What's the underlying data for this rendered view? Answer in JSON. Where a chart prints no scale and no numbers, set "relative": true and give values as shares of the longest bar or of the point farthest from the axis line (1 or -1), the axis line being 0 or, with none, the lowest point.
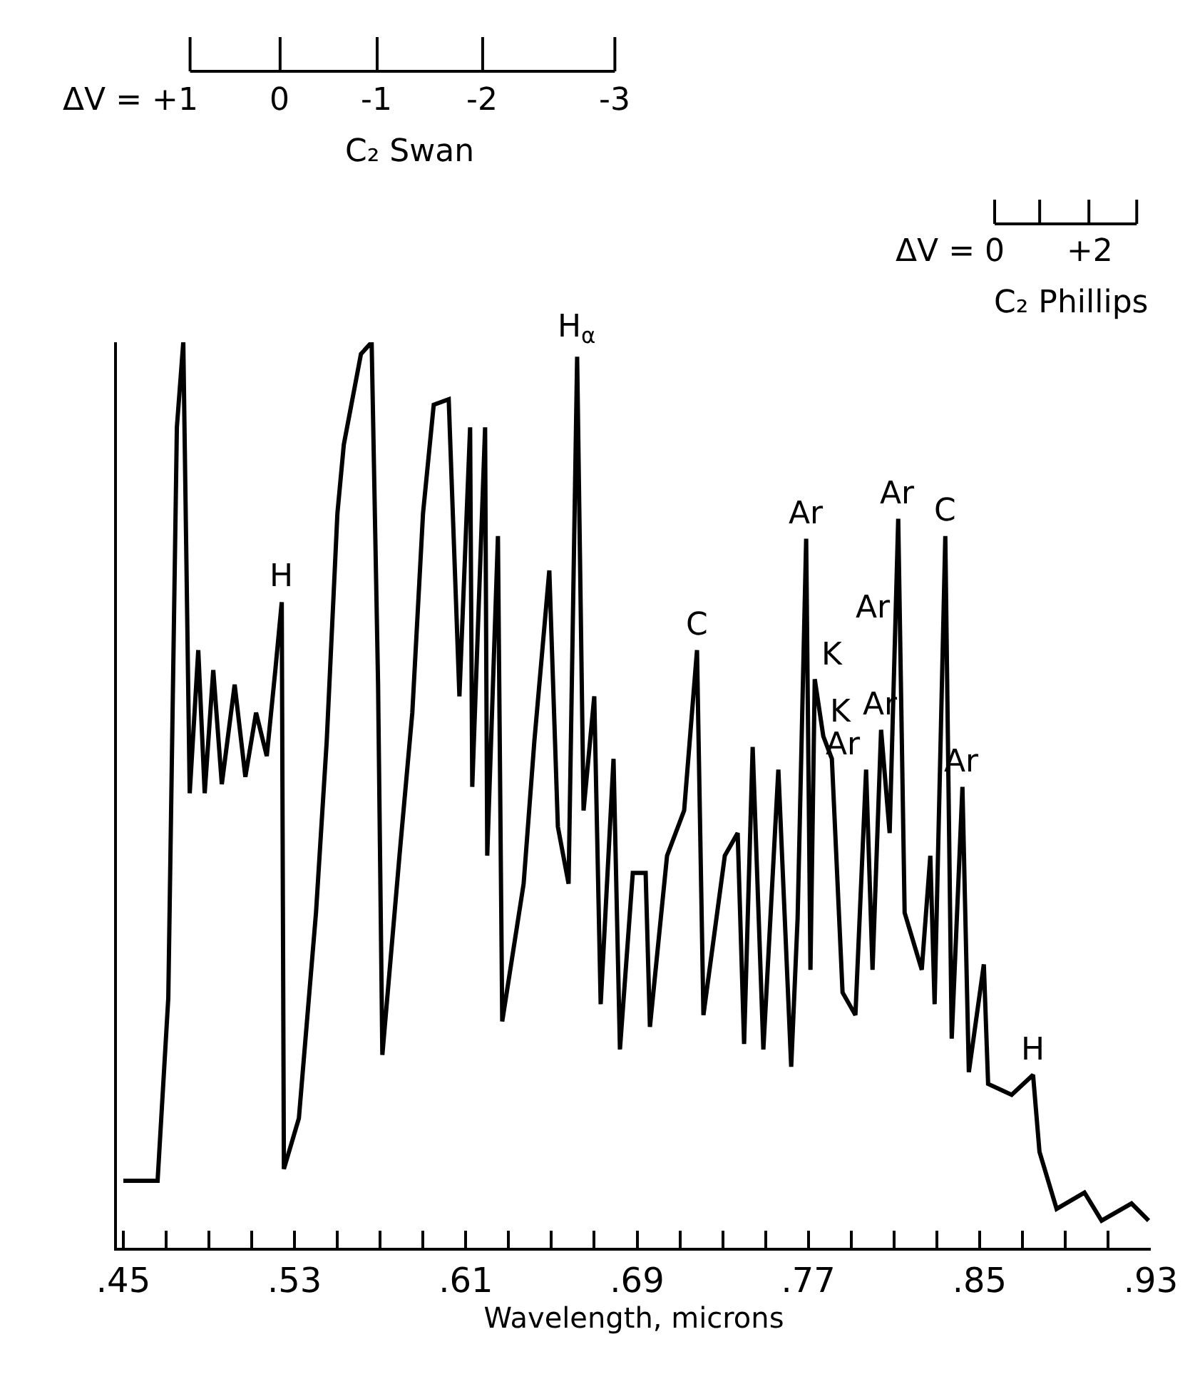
{
  "chart_data": {
    "type": "line",
    "relative": true,
    "xlabel": "Wavelength, microns",
    "xlim": [
      0.447,
      0.93
    ],
    "xticks": [
      {
        "value": 0.45,
        "label": ".45"
      },
      {
        "value": 0.47,
        "label": null
      },
      {
        "value": 0.49,
        "label": null
      },
      {
        "value": 0.51,
        "label": null
      },
      {
        "value": 0.53,
        "label": ".53"
      },
      {
        "value": 0.55,
        "label": null
      },
      {
        "value": 0.57,
        "label": null
      },
      {
        "value": 0.59,
        "label": null
      },
      {
        "value": 0.61,
        "label": ".61"
      },
      {
        "value": 0.63,
        "label": null
      },
      {
        "value": 0.65,
        "label": null
      },
      {
        "value": 0.67,
        "label": null
      },
      {
        "value": 0.69,
        "label": ".69"
      },
      {
        "value": 0.71,
        "label": null
      },
      {
        "value": 0.73,
        "label": null
      },
      {
        "value": 0.75,
        "label": null
      },
      {
        "value": 0.77,
        "label": ".77"
      },
      {
        "value": 0.79,
        "label": null
      },
      {
        "value": 0.81,
        "label": null
      },
      {
        "value": 0.83,
        "label": null
      },
      {
        "value": 0.85,
        "label": ".85"
      },
      {
        "value": 0.87,
        "label": null
      },
      {
        "value": 0.89,
        "label": null
      },
      {
        "value": 0.91,
        "label": null
      },
      {
        "value": 0.93,
        "label": ".93"
      }
    ],
    "tick_labels": "x",
    "marker": "none",
    "line_style": "solid",
    "series": [
      {
        "color": "#000000",
        "x": [
          0.45,
          0.466,
          0.471,
          0.475,
          0.478,
          0.481,
          0.485,
          0.488,
          0.492,
          0.496,
          0.502,
          0.507,
          0.512,
          0.517,
          0.521,
          0.524,
          0.525,
          0.532,
          0.54,
          0.545,
          0.55,
          0.553,
          0.561,
          0.566,
          0.569,
          0.571,
          0.579,
          0.585,
          0.59,
          0.595,
          0.602,
          0.607,
          0.612,
          0.613,
          0.619,
          0.62,
          0.625,
          0.627,
          0.637,
          0.642,
          0.649,
          0.653,
          0.658,
          0.662,
          0.665,
          0.67,
          0.673,
          0.679,
          0.682,
          0.688,
          0.694,
          0.696,
          0.704,
          0.712,
          0.718,
          0.721,
          0.731,
          0.737,
          0.74,
          0.744,
          0.749,
          0.756,
          0.762,
          0.765,
          0.769,
          0.771,
          0.773,
          0.777,
          0.781,
          0.786,
          0.792,
          0.797,
          0.8,
          0.804,
          0.808,
          0.812,
          0.815,
          0.823,
          0.827,
          0.829,
          0.834,
          0.837,
          0.842,
          0.845,
          0.852,
          0.854,
          0.865,
          0.875,
          0.878,
          0.886,
          0.899,
          0.907,
          0.921,
          0.929
        ],
        "values": [
          0.074,
          0.074,
          0.276,
          0.906,
          1.0,
          0.502,
          0.66,
          0.502,
          0.638,
          0.512,
          0.622,
          0.52,
          0.591,
          0.543,
          0.638,
          0.713,
          0.087,
          0.143,
          0.37,
          0.559,
          0.811,
          0.887,
          0.987,
          1.0,
          0.622,
          0.213,
          0.433,
          0.591,
          0.811,
          0.931,
          0.937,
          0.609,
          0.906,
          0.509,
          0.906,
          0.433,
          0.786,
          0.25,
          0.402,
          0.559,
          0.748,
          0.465,
          0.402,
          0.984,
          0.483,
          0.609,
          0.269,
          0.54,
          0.219,
          0.414,
          0.414,
          0.244,
          0.433,
          0.483,
          0.66,
          0.257,
          0.433,
          0.458,
          0.225,
          0.553,
          0.219,
          0.528,
          0.2,
          0.364,
          0.783,
          0.307,
          0.628,
          0.565,
          0.54,
          0.282,
          0.257,
          0.528,
          0.307,
          0.572,
          0.458,
          0.805,
          0.37,
          0.307,
          0.433,
          0.269,
          0.786,
          0.231,
          0.509,
          0.194,
          0.313,
          0.181,
          0.169,
          0.191,
          0.106,
          0.043,
          0.061,
          0.03,
          0.049,
          0.03
        ]
      }
    ],
    "annotations": [
      {
        "text": "H",
        "x": 0.524,
        "y": 0.713
      },
      {
        "text": "H$_{α}$",
        "x": 0.662,
        "y": 0.984
      },
      {
        "text": "C",
        "x": 0.718,
        "y": 0.66
      },
      {
        "text": "Ar",
        "x": 0.769,
        "y": 0.783
      },
      {
        "text": "K",
        "x": 0.773,
        "y": 0.628
      },
      {
        "text": "K",
        "x": 0.777,
        "y": 0.565
      },
      {
        "text": "Ar",
        "x": 0.797,
        "y": 0.528
      },
      {
        "text": "Ar",
        "x": 0.804,
        "y": 0.572
      },
      {
        "text": "Ar",
        "x": 0.812,
        "y": 0.707
      },
      {
        "text": "Ar",
        "x": 0.812,
        "y": 0.805
      },
      {
        "text": "C",
        "x": 0.834,
        "y": 0.786
      },
      {
        "text": "Ar",
        "x": 0.842,
        "y": 0.509
      },
      {
        "text": "H",
        "x": 0.875,
        "y": 0.191
      },
      "ΔV = +1",
      "0",
      "-1",
      "-2",
      "-3",
      "C₂ Swan",
      "ΔV = 0",
      "+2",
      "C₂ Phillips"
    ]
  }
}
